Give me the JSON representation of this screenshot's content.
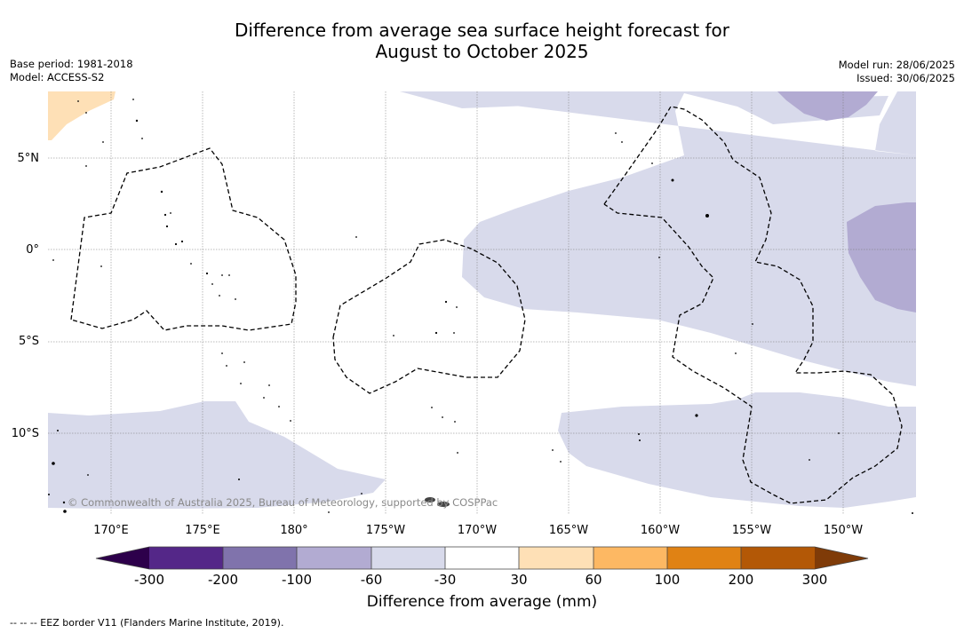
{
  "title_line1": "Difference from average sea surface height forecast for",
  "title_line2": "August to October 2025",
  "meta_left": {
    "base_period": "Base period: 1981-2018",
    "model": "Model: ACCESS-S2"
  },
  "meta_right": {
    "model_run": "Model run: 28/06/2025",
    "issued": "Issued: 30/06/2025"
  },
  "map": {
    "latitude_labels": [
      "5°N",
      "0°",
      "5°S",
      "10°S"
    ],
    "longitude_labels": [
      "170°E",
      "175°E",
      "180°",
      "175°W",
      "170°W",
      "165°W",
      "160°W",
      "155°W",
      "150°W"
    ],
    "copyright": "© Commonwealth of Australia 2025, Bureau of Meteorology, supported by COSPPac"
  },
  "colorbar": {
    "title": "Difference from average (mm)",
    "ticks": [
      "-300",
      "-200",
      "-100",
      "-60",
      "-30",
      "30",
      "60",
      "100",
      "200",
      "300"
    ],
    "colors": {
      "below_min": "#2d004b",
      "b1": "#542788",
      "b2": "#8073ac",
      "b3": "#b2abd2",
      "b4": "#d8daeb",
      "b5": "#ffffff",
      "b6": "#fee0b6",
      "b7": "#fdb863",
      "b8": "#e08214",
      "b9": "#b35806",
      "above_max": "#7f3b08"
    }
  },
  "footnote": "--  --  -- EEZ border V11 (Flanders Marine Institute, 2019)."
}
